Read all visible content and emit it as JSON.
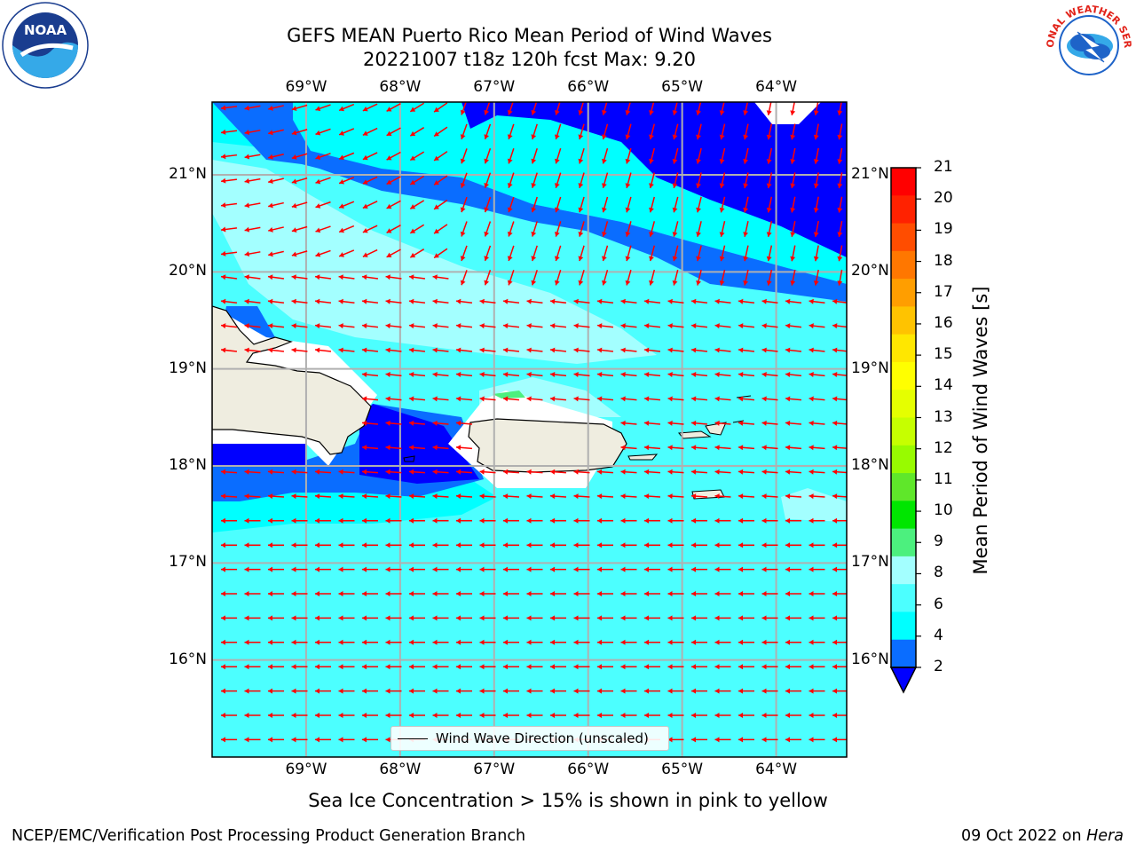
{
  "title": {
    "line1": "GEFS MEAN Puerto Rico Mean Period of Wind Waves",
    "line2": "20221007 t18z 120h fcst   Max: 9.20"
  },
  "map": {
    "extent_lon": [
      -70.0,
      -63.25
    ],
    "extent_lat": [
      15.0,
      21.75
    ],
    "lon_ticks": [
      {
        "value": -69,
        "label": "69°W"
      },
      {
        "value": -68,
        "label": "68°W"
      },
      {
        "value": -67,
        "label": "67°W"
      },
      {
        "value": -66,
        "label": "66°W"
      },
      {
        "value": -65,
        "label": "65°W"
      },
      {
        "value": -64,
        "label": "64°W"
      }
    ],
    "lat_ticks": [
      {
        "value": 21,
        "label": "21°N"
      },
      {
        "value": 20,
        "label": "20°N"
      },
      {
        "value": 19,
        "label": "19°N"
      },
      {
        "value": 18,
        "label": "18°N"
      },
      {
        "value": 17,
        "label": "17°N"
      },
      {
        "value": 16,
        "label": "16°N"
      }
    ],
    "legend_label": "Wind Wave Direction (unscaled)",
    "arrow_color": "#ff0000",
    "land_color": "#efede0",
    "ocean_colors": {
      "2-4": "#0a6dff",
      "4-6": "#00ffff",
      "6-8": "#4cffff",
      "8-9": "#a3ffff",
      "0-2": "#0000ff",
      "9-10": "#4cf07e"
    }
  },
  "colorbar": {
    "label": "Mean Period of Wind Waves [s]",
    "ticks": [
      "21",
      "20",
      "19",
      "18",
      "17",
      "16",
      "15",
      "14",
      "13",
      "12",
      "11",
      "10",
      "9",
      "8",
      "6",
      "4",
      "2"
    ],
    "colors": [
      "#ff0000",
      "#ff2200",
      "#ff4d00",
      "#ff7700",
      "#ff9e00",
      "#ffc300",
      "#ffe700",
      "#ffff00",
      "#e5ff00",
      "#c6ff00",
      "#98fb00",
      "#5fe72a",
      "#00e600",
      "#4cf07e",
      "#a3ffff",
      "#4cffff",
      "#00ffff",
      "#0a6dff",
      "#0000ff"
    ]
  },
  "caption": "Sea Ice Concentration > 15% is shown in pink to yellow",
  "footer": {
    "left": "NCEP/EMC/Verification Post Processing Product Generation Branch",
    "date": "09 Oct 2022 on ",
    "machine": "Hera"
  },
  "logos": {
    "noaa_text": "NOAA",
    "nws_text": "NATIONAL WEATHER SERVICE"
  }
}
